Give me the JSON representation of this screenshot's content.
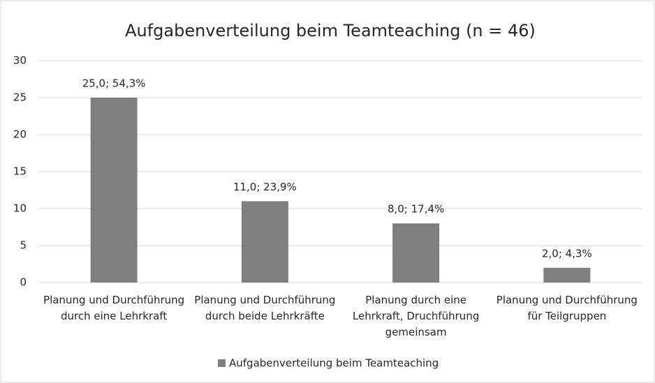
{
  "chart_data": {
    "type": "bar",
    "title": "Aufgabenverteilung beim Teamteaching (n = 46)",
    "categories": [
      "Planung und Durchführung durch eine Lehrkraft",
      "Planung und Durchführung durch beide Lehrkräfte",
      "Planung durch eine Lehrkraft, Druchführung gemeinsam",
      "Planung und Durchführung für Teilgruppen"
    ],
    "series": [
      {
        "name": "Aufgabenverteilung beim Teamteaching",
        "color": "#7f7f7f",
        "values": [
          25,
          11,
          8,
          2
        ],
        "value_labels": [
          "25,0; 54,3%",
          "11,0; 23,9%",
          "8,0; 17,4%",
          "2,0; 4,3%"
        ]
      }
    ],
    "ylim": [
      0,
      30
    ],
    "yticks": [
      0,
      5,
      10,
      15,
      20,
      25,
      30
    ],
    "grid": true,
    "legend": "bottom"
  }
}
